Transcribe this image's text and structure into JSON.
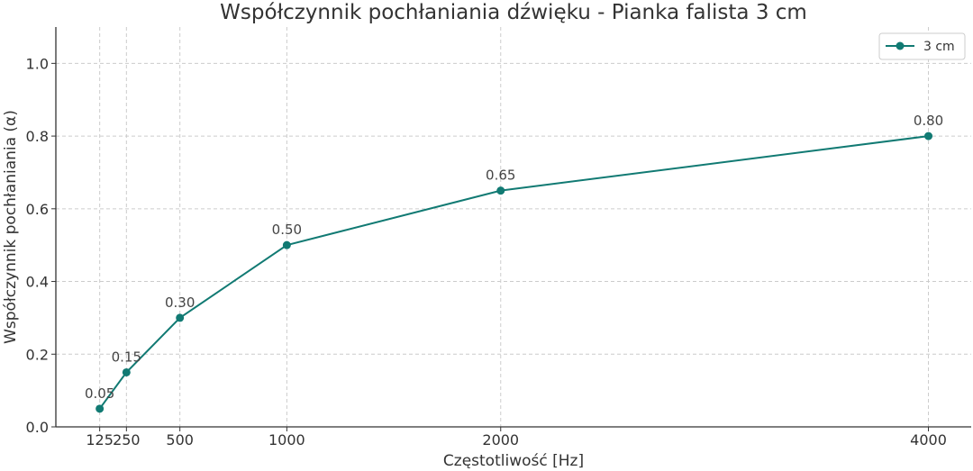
{
  "chart_data": {
    "type": "line",
    "title": "Współczynnik pochłaniania dźwięku - Pianka falista 3 cm",
    "xlabel": "Częstotliwość [Hz]",
    "ylabel": "Współczynnik pochłaniania (α)",
    "x": [
      125,
      250,
      500,
      1000,
      2000,
      4000
    ],
    "x_tick_labels": [
      "125",
      "250",
      "500",
      "1000",
      "2000",
      "4000"
    ],
    "xlim": [
      -80,
      4200
    ],
    "ylim": [
      0,
      1.1
    ],
    "y_ticks": [
      0.0,
      0.2,
      0.4,
      0.6,
      0.8,
      1.0
    ],
    "y_tick_labels": [
      "0.0",
      "0.2",
      "0.4",
      "0.6",
      "0.8",
      "1.0"
    ],
    "grid": true,
    "legend_position": "top-right",
    "series": [
      {
        "name": "3 cm",
        "color": "#117a73",
        "marker": "circle",
        "values": [
          0.05,
          0.15,
          0.3,
          0.5,
          0.65,
          0.8
        ],
        "data_labels": [
          "0.05",
          "0.15",
          "0.30",
          "0.50",
          "0.65",
          "0.80"
        ]
      }
    ]
  }
}
